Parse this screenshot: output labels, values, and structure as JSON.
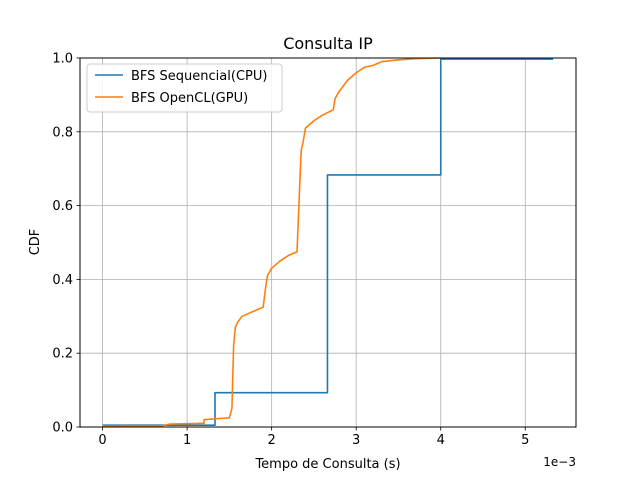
{
  "chart_data": {
    "type": "line",
    "title": "Consulta IP",
    "xlabel": "Tempo de Consulta (s)",
    "ylabel": "CDF",
    "x_offset_label": "1e−3",
    "xlim": [
      -0.000267,
      0.0056
    ],
    "ylim": [
      0,
      1.0
    ],
    "x_ticks": [
      0,
      0.001,
      0.002,
      0.003,
      0.004,
      0.005
    ],
    "x_tick_labels": [
      "0",
      "1",
      "2",
      "3",
      "4",
      "5"
    ],
    "y_ticks": [
      0,
      0.2,
      0.4,
      0.6,
      0.8,
      1.0
    ],
    "y_tick_labels": [
      "0.0",
      "0.2",
      "0.4",
      "0.6",
      "0.8",
      "1.0"
    ],
    "grid": true,
    "legend_position": "upper-left",
    "series": [
      {
        "name": "BFS Sequencial(CPU)",
        "color": "#1f77b4",
        "x": [
          0,
          0.00133,
          0.00133,
          0.00266,
          0.00266,
          0.004,
          0.004,
          0.00533
        ],
        "y": [
          0.005,
          0.005,
          0.093,
          0.093,
          0.683,
          0.683,
          0.997,
          0.997
        ]
      },
      {
        "name": "BFS OpenCL(GPU)",
        "color": "#ff7f0e",
        "x": [
          0,
          0.0007,
          0.0008,
          0.0012,
          0.0012,
          0.0015,
          0.00153,
          0.00155,
          0.00157,
          0.0016,
          0.00165,
          0.0017,
          0.0018,
          0.0019,
          0.00193,
          0.00195,
          0.002,
          0.0021,
          0.0022,
          0.0023,
          0.00234,
          0.00235,
          0.00237,
          0.0024,
          0.0025,
          0.0026,
          0.00273,
          0.00275,
          0.0028,
          0.0029,
          0.003,
          0.0031,
          0.0032,
          0.0033,
          0.0035,
          0.0037,
          0.004
        ],
        "y": [
          0.002,
          0.003,
          0.008,
          0.01,
          0.02,
          0.025,
          0.05,
          0.22,
          0.27,
          0.285,
          0.3,
          0.305,
          0.315,
          0.325,
          0.38,
          0.41,
          0.43,
          0.45,
          0.465,
          0.475,
          0.7,
          0.75,
          0.77,
          0.81,
          0.83,
          0.845,
          0.86,
          0.89,
          0.91,
          0.94,
          0.96,
          0.975,
          0.98,
          0.99,
          0.995,
          0.998,
          1.0
        ]
      }
    ]
  }
}
